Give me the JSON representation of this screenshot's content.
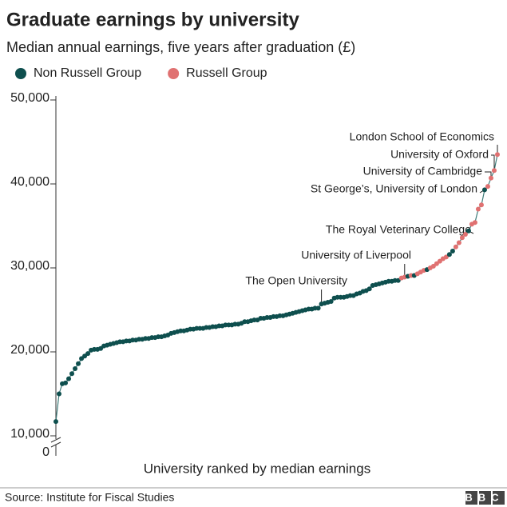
{
  "chart_data": {
    "type": "scatter",
    "title": "Graduate earnings by university",
    "subtitle": "Median annual earnings, five years after graduation (£)",
    "x_label": "University ranked by median earnings",
    "source": "Source: Institute for Fiscal Studies",
    "logo": "BBC",
    "legend": [
      {
        "name": "Non Russell Group",
        "color": "#0e4f4e"
      },
      {
        "name": "Russell Group",
        "color": "#e07171"
      }
    ],
    "line_color": "#3f7c7a",
    "xlim": [
      1,
      139
    ],
    "ylim": [
      10000,
      50000
    ],
    "yticks": [
      {
        "value": 10000,
        "label": "10,000"
      },
      {
        "value": 20000,
        "label": "20,000"
      },
      {
        "value": 30000,
        "label": "30,000"
      },
      {
        "value": 40000,
        "label": "40,000"
      },
      {
        "value": 50000,
        "label": "50,000"
      }
    ],
    "ybreak": 0,
    "x": [
      1,
      2,
      3,
      4,
      5,
      6,
      7,
      8,
      9,
      10,
      11,
      12,
      13,
      14,
      15,
      16,
      17,
      18,
      19,
      20,
      21,
      22,
      23,
      24,
      25,
      26,
      27,
      28,
      29,
      30,
      31,
      32,
      33,
      34,
      35,
      36,
      37,
      38,
      39,
      40,
      41,
      42,
      43,
      44,
      45,
      46,
      47,
      48,
      49,
      50,
      51,
      52,
      53,
      54,
      55,
      56,
      57,
      58,
      59,
      60,
      61,
      62,
      63,
      64,
      65,
      66,
      67,
      68,
      69,
      70,
      71,
      72,
      73,
      74,
      75,
      76,
      77,
      78,
      79,
      80,
      81,
      82,
      83,
      84,
      85,
      86,
      87,
      88,
      89,
      90,
      91,
      92,
      93,
      94,
      95,
      96,
      97,
      98,
      99,
      100,
      101,
      102,
      103,
      104,
      105,
      106,
      107,
      108,
      109,
      110,
      111,
      112,
      113,
      114,
      115,
      116,
      117,
      118,
      119,
      120,
      121,
      122,
      123,
      124,
      125,
      126,
      127,
      128,
      129,
      130,
      131,
      132,
      133,
      134,
      135,
      136,
      137,
      138,
      139
    ],
    "values": [
      11700,
      15000,
      16200,
      16300,
      16800,
      17400,
      18000,
      18600,
      19200,
      19500,
      19800,
      20200,
      20300,
      20300,
      20400,
      20700,
      20800,
      20900,
      21000,
      21100,
      21200,
      21200,
      21300,
      21300,
      21400,
      21400,
      21500,
      21500,
      21600,
      21600,
      21700,
      21700,
      21800,
      21800,
      21900,
      22000,
      22200,
      22300,
      22400,
      22500,
      22500,
      22600,
      22700,
      22700,
      22800,
      22800,
      22800,
      22900,
      22900,
      23000,
      23000,
      23100,
      23100,
      23200,
      23200,
      23200,
      23300,
      23300,
      23400,
      23600,
      23600,
      23700,
      23800,
      23800,
      24000,
      24000,
      24100,
      24100,
      24200,
      24200,
      24300,
      24300,
      24400,
      24500,
      24600,
      24700,
      24800,
      24900,
      25000,
      25100,
      25100,
      25200,
      25200,
      25700,
      25800,
      25900,
      26000,
      26400,
      26500,
      26500,
      26500,
      26600,
      26700,
      26700,
      26900,
      27000,
      27200,
      27300,
      27500,
      27900,
      28000,
      28100,
      28200,
      28300,
      28400,
      28400,
      28500,
      28500,
      28800,
      28900,
      29000,
      29100,
      29100,
      29300,
      29500,
      29700,
      29800,
      30000,
      30200,
      30500,
      30800,
      31100,
      31300,
      31600,
      32000,
      32500,
      33000,
      33600,
      34000,
      34400,
      35200,
      35400,
      37000,
      37500,
      39300,
      39700,
      40700,
      41600,
      43500
    ],
    "groups": [
      0,
      0,
      0,
      0,
      0,
      0,
      0,
      0,
      0,
      0,
      0,
      0,
      0,
      0,
      0,
      0,
      0,
      0,
      0,
      0,
      0,
      0,
      0,
      0,
      0,
      0,
      0,
      0,
      0,
      0,
      0,
      0,
      0,
      0,
      0,
      0,
      0,
      0,
      0,
      0,
      0,
      0,
      0,
      0,
      0,
      0,
      0,
      0,
      0,
      0,
      0,
      0,
      0,
      0,
      0,
      0,
      0,
      0,
      0,
      0,
      0,
      0,
      0,
      0,
      0,
      0,
      0,
      0,
      0,
      0,
      0,
      0,
      0,
      0,
      0,
      0,
      0,
      0,
      0,
      0,
      0,
      0,
      0,
      0,
      0,
      0,
      0,
      0,
      0,
      0,
      0,
      0,
      0,
      0,
      0,
      0,
      0,
      0,
      0,
      0,
      0,
      0,
      0,
      0,
      0,
      0,
      0,
      0,
      1,
      1,
      0,
      1,
      0,
      1,
      1,
      1,
      0,
      1,
      1,
      1,
      1,
      1,
      1,
      0,
      0,
      1,
      1,
      1,
      1,
      0,
      1,
      1,
      1,
      1,
      0,
      1,
      1,
      1,
      1
    ],
    "annotations": [
      {
        "text": "London School of Economics",
        "x": 139
      },
      {
        "text": "University of Oxford",
        "x": 138
      },
      {
        "text": "University of Cambridge",
        "x": 137
      },
      {
        "text": "St George’s, University of London",
        "x": 135
      },
      {
        "text": "The Royal Veterinary College",
        "x": 130
      },
      {
        "text": "University of Liverpool",
        "x": 110
      },
      {
        "text": "The Open University",
        "x": 84
      }
    ]
  }
}
